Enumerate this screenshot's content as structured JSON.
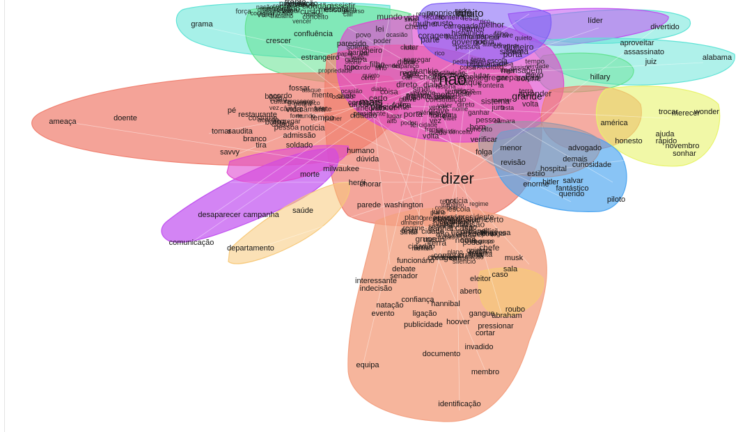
{
  "colors": {
    "red": "#f08070",
    "salmon": "#f4a283",
    "green": "#62e290",
    "cyan": "#5fe3d6",
    "magenta": "#e04ad0",
    "purple": "#c050f0",
    "violet": "#7e5cf6",
    "blue": "#4aa4f0",
    "yellow": "#e8f46c",
    "orange": "#f7c97a",
    "gray": "#9a98a8"
  },
  "hub_words": {
    "dizer": "dizer",
    "mais": "mais",
    "muito": "muito",
    "grande": "grande",
    "nao": "não"
  },
  "words_big": [
    "grama",
    "crescer",
    "confluência",
    "parecido",
    "estrangeiro",
    "topo",
    "divertido",
    "líder",
    "alabama",
    "juiz",
    "assassinato",
    "aproveitar",
    "hillary",
    "fossar",
    "pé",
    "restaurante",
    "ameaça",
    "doente",
    "tomar",
    "saudita",
    "branco",
    "tira",
    "savvy",
    "soldado",
    "admissão",
    "humano",
    "dúvida",
    "milwaukee",
    "herói",
    "chorar",
    "morte",
    "parede",
    "américa",
    "honesto",
    "advogado",
    "menor",
    "folga",
    "verificar",
    "demais",
    "curiosidade",
    "estilo",
    "revisão",
    "hospital",
    "enorme",
    "hitler",
    "salvar",
    "fantástico",
    "querido",
    "piloto",
    "ajuda",
    "rápido",
    "novembro",
    "sonhar",
    "trocar",
    "merecer",
    "wonder",
    "desaparecer",
    "campanha",
    "saúde",
    "comunicação",
    "departamento",
    "washington",
    "empresa",
    "funcionário",
    "debate",
    "senador",
    "interessante",
    "indecisão",
    "sala",
    "caso",
    "musk",
    "confiança",
    "natação",
    "hannibal",
    "evento",
    "ligação",
    "gangue",
    "abraham",
    "roubo",
    "publicidade",
    "hoover",
    "pressionar",
    "cortar",
    "invadido",
    "documento",
    "equipa",
    "membro",
    "identificação",
    "eleitor",
    "aberto"
  ],
  "words_small": [
    "hispânico",
    "regra",
    "medo",
    "grupo",
    "quieto",
    "aprender",
    "ocasião",
    "feito",
    "vagar",
    "frankie",
    "sinal",
    "ataque",
    "cidadão",
    "valer",
    "carregado",
    "segregar",
    "manter",
    "assistir",
    "propriedade",
    "mente",
    "solene",
    "imediato",
    "constituição",
    "alto",
    "cair",
    "barba",
    "pessoa",
    "costume",
    "custo",
    "rico",
    "fronteira",
    "grave",
    "frente",
    "recurso",
    "cheiro",
    "coragem",
    "preparação",
    "pedra",
    "diabo",
    "vencer",
    "direto",
    "festa",
    "tempo",
    "vida",
    "mensagem",
    "volta",
    "arma",
    "chefe",
    "presidente",
    "notícia",
    "filho",
    "câmara",
    "lutar",
    "comprar",
    "conceito",
    "melhor",
    "forte",
    "nome",
    "papel",
    "porta",
    "regime",
    "silêncio",
    "cidade",
    "escola",
    "jovem",
    "mulher",
    "juro",
    "bom",
    "difícil",
    "cultura",
    "sistema",
    "visão",
    "lugar",
    "dinheiro",
    "lei",
    "trabalho",
    "força",
    "nação",
    "ganhar",
    "acordo",
    "plano",
    "certo",
    "casa",
    "mundo",
    "povo",
    "governo",
    "poder",
    "terra",
    "guerra",
    "história",
    "vez",
    "coisa",
    "parte",
    "verdade"
  ]
}
